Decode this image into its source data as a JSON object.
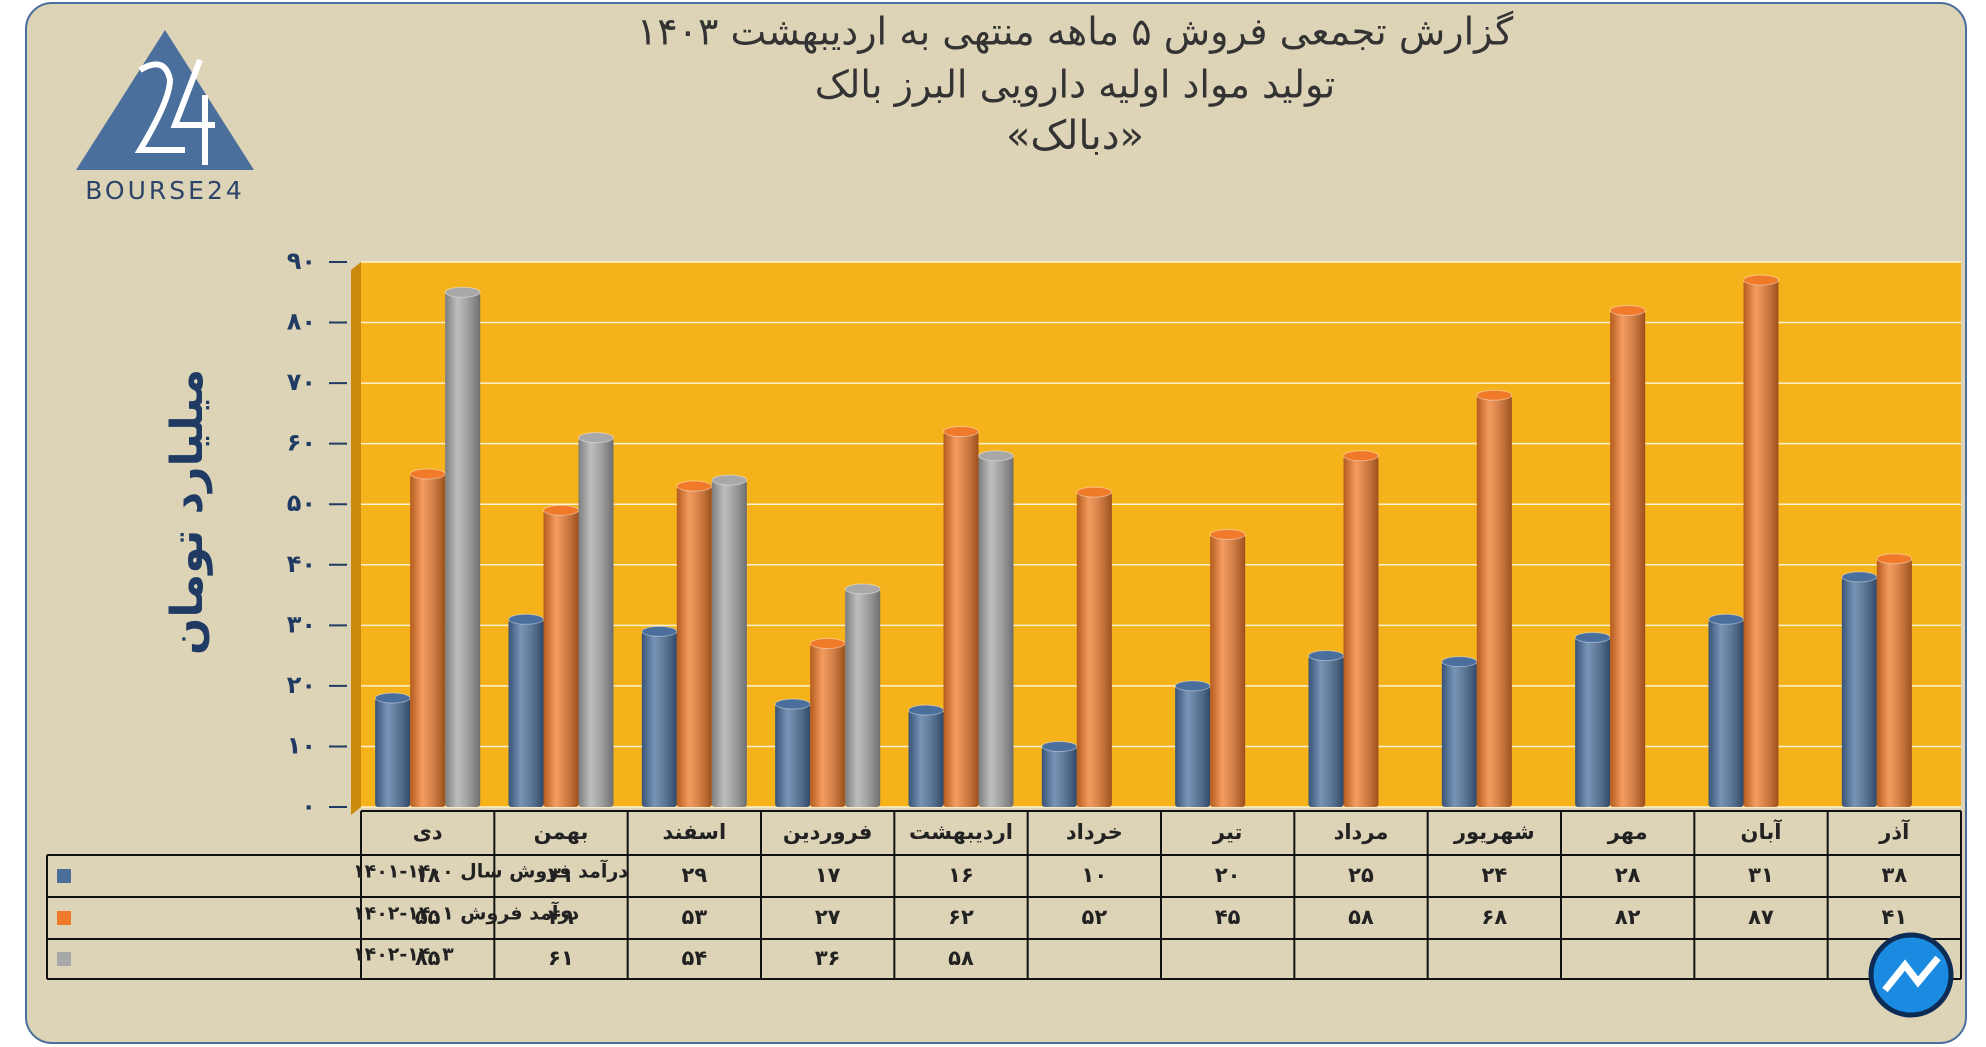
{
  "brand": "BOURSE24",
  "chart_data": {
    "type": "bar",
    "title": "گزارش تجمعی فروش ۵ ماهه منتهی به اردیبهشت ۱۴۰۳",
    "subtitle": "تولید مواد اولیه دارویی البرز بالک",
    "subtitle2": "«دبالک»",
    "y_label": "میلیارد تومان",
    "categories": [
      "دی",
      "بهمن",
      "اسفند",
      "فروردین",
      "اردیبهشت",
      "خرداد",
      "تیر",
      "مرداد",
      "شهریور",
      "مهر",
      "آبان",
      "آذر"
    ],
    "series": [
      {
        "name": "درآمد فروش سال ۱۴۰۰-۱۴۰۱",
        "color": "#4a6f9c",
        "values": [
          18,
          31,
          29,
          17,
          16,
          10,
          20,
          25,
          24,
          28,
          31,
          38
        ],
        "value_labels": [
          "۱۸",
          "۳۱",
          "۲۹",
          "۱۷",
          "۱۶",
          "۱۰",
          "۲۰",
          "۲۵",
          "۲۴",
          "۲۸",
          "۳۱",
          "۳۸"
        ]
      },
      {
        "name": "درآمد فروش ۱۴۰۱-۱۴۰۲",
        "color": "#f07a2a",
        "values": [
          55,
          49,
          53,
          27,
          62,
          52,
          45,
          58,
          68,
          82,
          87,
          41
        ],
        "value_labels": [
          "۵۵",
          "۴۹",
          "۵۳",
          "۲۷",
          "۶۲",
          "۵۲",
          "۴۵",
          "۵۸",
          "۶۸",
          "۸۲",
          "۸۷",
          "۴۱"
        ]
      },
      {
        "name": "۱۴۰۲-۱۴۰۳",
        "color": "#a8a8a8",
        "values": [
          85,
          61,
          54,
          36,
          58,
          null,
          null,
          null,
          null,
          null,
          null,
          null
        ],
        "value_labels": [
          "۸۵",
          "۶۱",
          "۵۴",
          "۳۶",
          "۵۸",
          null,
          null,
          null,
          null,
          null,
          null,
          null
        ]
      }
    ],
    "ylim": [
      0,
      90
    ],
    "yticks": [
      {
        "value": 0,
        "label": "۰"
      },
      {
        "value": 10,
        "label": "۱۰"
      },
      {
        "value": 20,
        "label": "۲۰"
      },
      {
        "value": 30,
        "label": "۳۰"
      },
      {
        "value": 40,
        "label": "۴۰"
      },
      {
        "value": 50,
        "label": "۵۰"
      },
      {
        "value": 60,
        "label": "۶۰"
      },
      {
        "value": 70,
        "label": "۷۰"
      },
      {
        "value": 80,
        "label": "۸۰"
      },
      {
        "value": 90,
        "label": "۹۰"
      }
    ],
    "grid": true,
    "plot_color": "#f5b21a"
  }
}
